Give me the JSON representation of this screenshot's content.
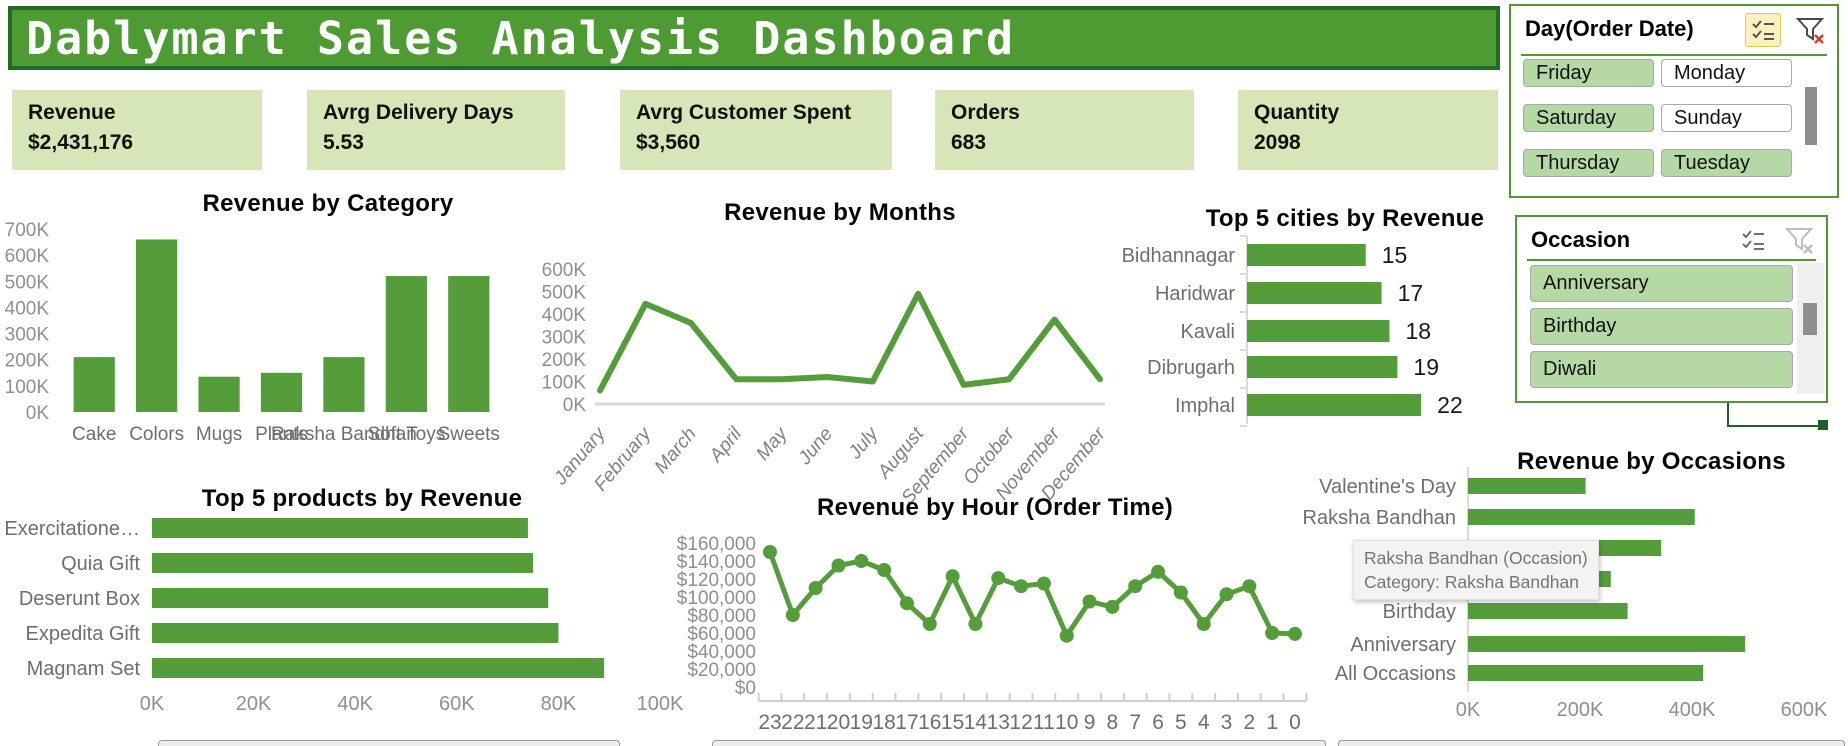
{
  "header": {
    "title": "Dablymart Sales Analysis Dashboard"
  },
  "kpis": [
    {
      "label": "Revenue",
      "value": "$2,431,176"
    },
    {
      "label": "Avrg Delivery Days",
      "value": "5.53"
    },
    {
      "label": "Avrg Customer Spent",
      "value": "$3,560"
    },
    {
      "label": "Orders",
      "value": "683"
    },
    {
      "label": "Quantity",
      "value": "2098"
    }
  ],
  "slicers": {
    "day": {
      "title": "Day(Order Date)",
      "icons": [
        "multi-select-icon",
        "clear-filter-icon"
      ],
      "items": [
        {
          "label": "Friday",
          "selected": true
        },
        {
          "label": "Monday",
          "selected": false
        },
        {
          "label": "Saturday",
          "selected": true
        },
        {
          "label": "Sunday",
          "selected": false
        },
        {
          "label": "Thursday",
          "selected": true
        },
        {
          "label": "Tuesday",
          "selected": true
        }
      ]
    },
    "occasion": {
      "title": "Occasion",
      "icons": [
        "multi-select-icon",
        "clear-filter-icon"
      ],
      "items": [
        {
          "label": "Anniversary",
          "selected": true
        },
        {
          "label": "Birthday",
          "selected": true
        },
        {
          "label": "Diwali",
          "selected": true
        }
      ]
    }
  },
  "tooltip": {
    "line1": "Raksha Bandhan (Occasion)",
    "line2": "Category: Raksha Bandhan"
  },
  "colors": {
    "green": "#549d3a",
    "header_green": "#4e9b33",
    "header_border": "#236b21",
    "kpi_bg": "#d6e6b8",
    "slicer_selected_bg": "#b5d9a5",
    "slicer_border": "#4d9a32",
    "axis_text": "#8f8f8f",
    "category_text": "#6e6e6e",
    "tooltip_text": "#757575"
  },
  "chart_data": [
    {
      "id": "category",
      "type": "bar",
      "title": "Revenue by Category",
      "categories": [
        "Cake",
        "Colors",
        "Mugs",
        "Plants",
        "Raksha Bandhan",
        "Soft Toys",
        "Sweets"
      ],
      "values": [
        210000,
        660000,
        135000,
        150000,
        210000,
        520000,
        520000
      ],
      "yticks": [
        "0K",
        "100K",
        "200K",
        "300K",
        "400K",
        "500K",
        "600K",
        "700K"
      ],
      "ylim": [
        0,
        700000
      ],
      "bar_color": "#549d3a"
    },
    {
      "id": "months",
      "type": "line",
      "title": "Revenue by Months",
      "categories": [
        "January",
        "February",
        "March",
        "April",
        "May",
        "June",
        "July",
        "August",
        "September",
        "October",
        "November",
        "December"
      ],
      "values": [
        60000,
        445000,
        360000,
        110000,
        110000,
        120000,
        100000,
        490000,
        85000,
        110000,
        375000,
        110000
      ],
      "yticks": [
        "0K",
        "100K",
        "200K",
        "300K",
        "400K",
        "500K",
        "600K"
      ],
      "ylim": [
        0,
        600000
      ],
      "line_color": "#549d3a",
      "markers": false
    },
    {
      "id": "cities",
      "type": "bar-horizontal",
      "title": "Top 5 cities by Revenue",
      "categories": [
        "Bidhannagar",
        "Haridwar",
        "Kavali",
        "Dibrugarh",
        "Imphal"
      ],
      "values": [
        15,
        17,
        18,
        19,
        22
      ],
      "data_labels": [
        "15",
        "17",
        "18",
        "19",
        "22"
      ],
      "xlim": [
        0,
        24
      ],
      "bar_color": "#549d3a"
    },
    {
      "id": "products",
      "type": "bar-horizontal",
      "title": "Top 5 products by Revenue",
      "categories": [
        "Exercitatione…",
        "Quia Gift",
        "Deserunt Box",
        "Expedita Gift",
        "Magnam Set"
      ],
      "values": [
        74000,
        75000,
        78000,
        80000,
        89000
      ],
      "xticks": [
        "0K",
        "20K",
        "40K",
        "60K",
        "80K",
        "100K"
      ],
      "xlim": [
        0,
        100000
      ],
      "bar_color": "#549d3a"
    },
    {
      "id": "hour",
      "type": "line",
      "title": "Revenue by Hour (Order Time)",
      "categories": [
        "23",
        "22",
        "21",
        "20",
        "19",
        "18",
        "17",
        "16",
        "15",
        "14",
        "13",
        "12",
        "11",
        "10",
        "9",
        "8",
        "7",
        "6",
        "5",
        "4",
        "3",
        "2",
        "1",
        "0"
      ],
      "values": [
        150000,
        80000,
        110000,
        135000,
        140000,
        130000,
        93000,
        70000,
        123000,
        70000,
        121000,
        112000,
        115000,
        57000,
        95000,
        89000,
        112000,
        128000,
        105000,
        70000,
        103000,
        112000,
        60000,
        59000
      ],
      "yticks": [
        "$0",
        "$20,000",
        "$40,000",
        "$60,000",
        "$80,000",
        "$100,000",
        "$120,000",
        "$140,000",
        "$160,000"
      ],
      "ylim": [
        0,
        160000
      ],
      "line_color": "#549d3a",
      "markers": true
    },
    {
      "id": "occasions",
      "type": "bar-horizontal",
      "title": "Revenue by Occasions",
      "categories": [
        "Valentine's Day",
        "Raksha Bandhan",
        "",
        "",
        "Birthday",
        "Anniversary",
        "All Occasions"
      ],
      "values": [
        210000,
        405000,
        345000,
        255000,
        285000,
        495000,
        420000
      ],
      "xticks": [
        "0K",
        "200K",
        "400K",
        "600K"
      ],
      "xlim": [
        0,
        600000
      ],
      "hidden_label_indices": [
        2,
        3
      ],
      "bar_color": "#549d3a"
    }
  ]
}
